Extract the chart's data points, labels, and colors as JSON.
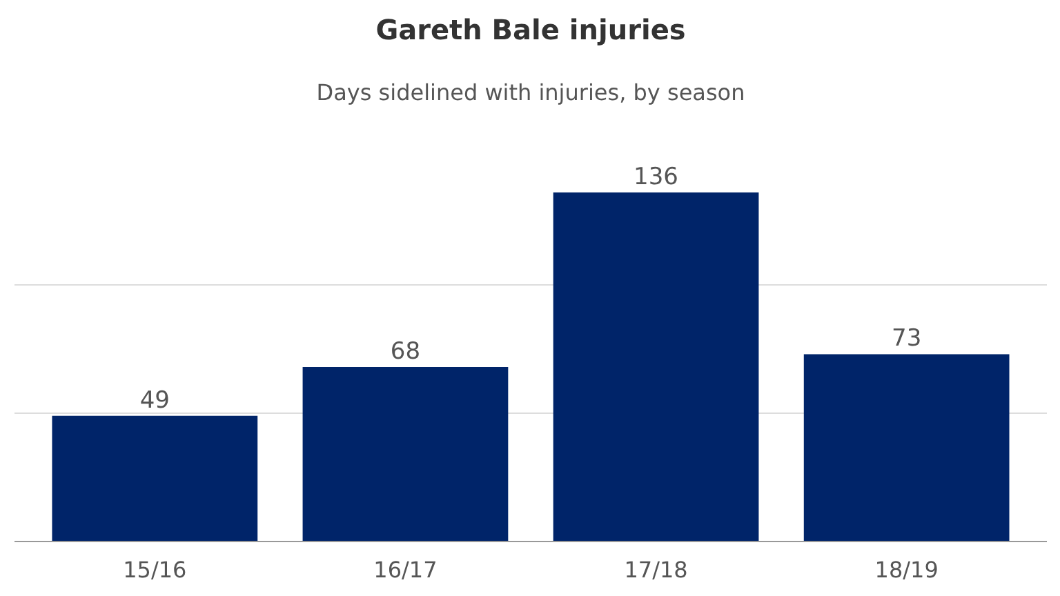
{
  "chart_data": {
    "type": "bar",
    "title": "Gareth Bale injuries",
    "subtitle": "Days sidelined with injuries, by season",
    "categories": [
      "15/16",
      "16/17",
      "17/18",
      "18/19"
    ],
    "values": [
      49,
      68,
      136,
      73
    ],
    "color": "#002469",
    "ref_lines": [
      {
        "axis": "y",
        "value": 50,
        "color": "#dddddd"
      },
      {
        "axis": "y",
        "value": 100,
        "color": "#dddddd"
      }
    ],
    "tick_labels": "x",
    "data_labels": true
  }
}
